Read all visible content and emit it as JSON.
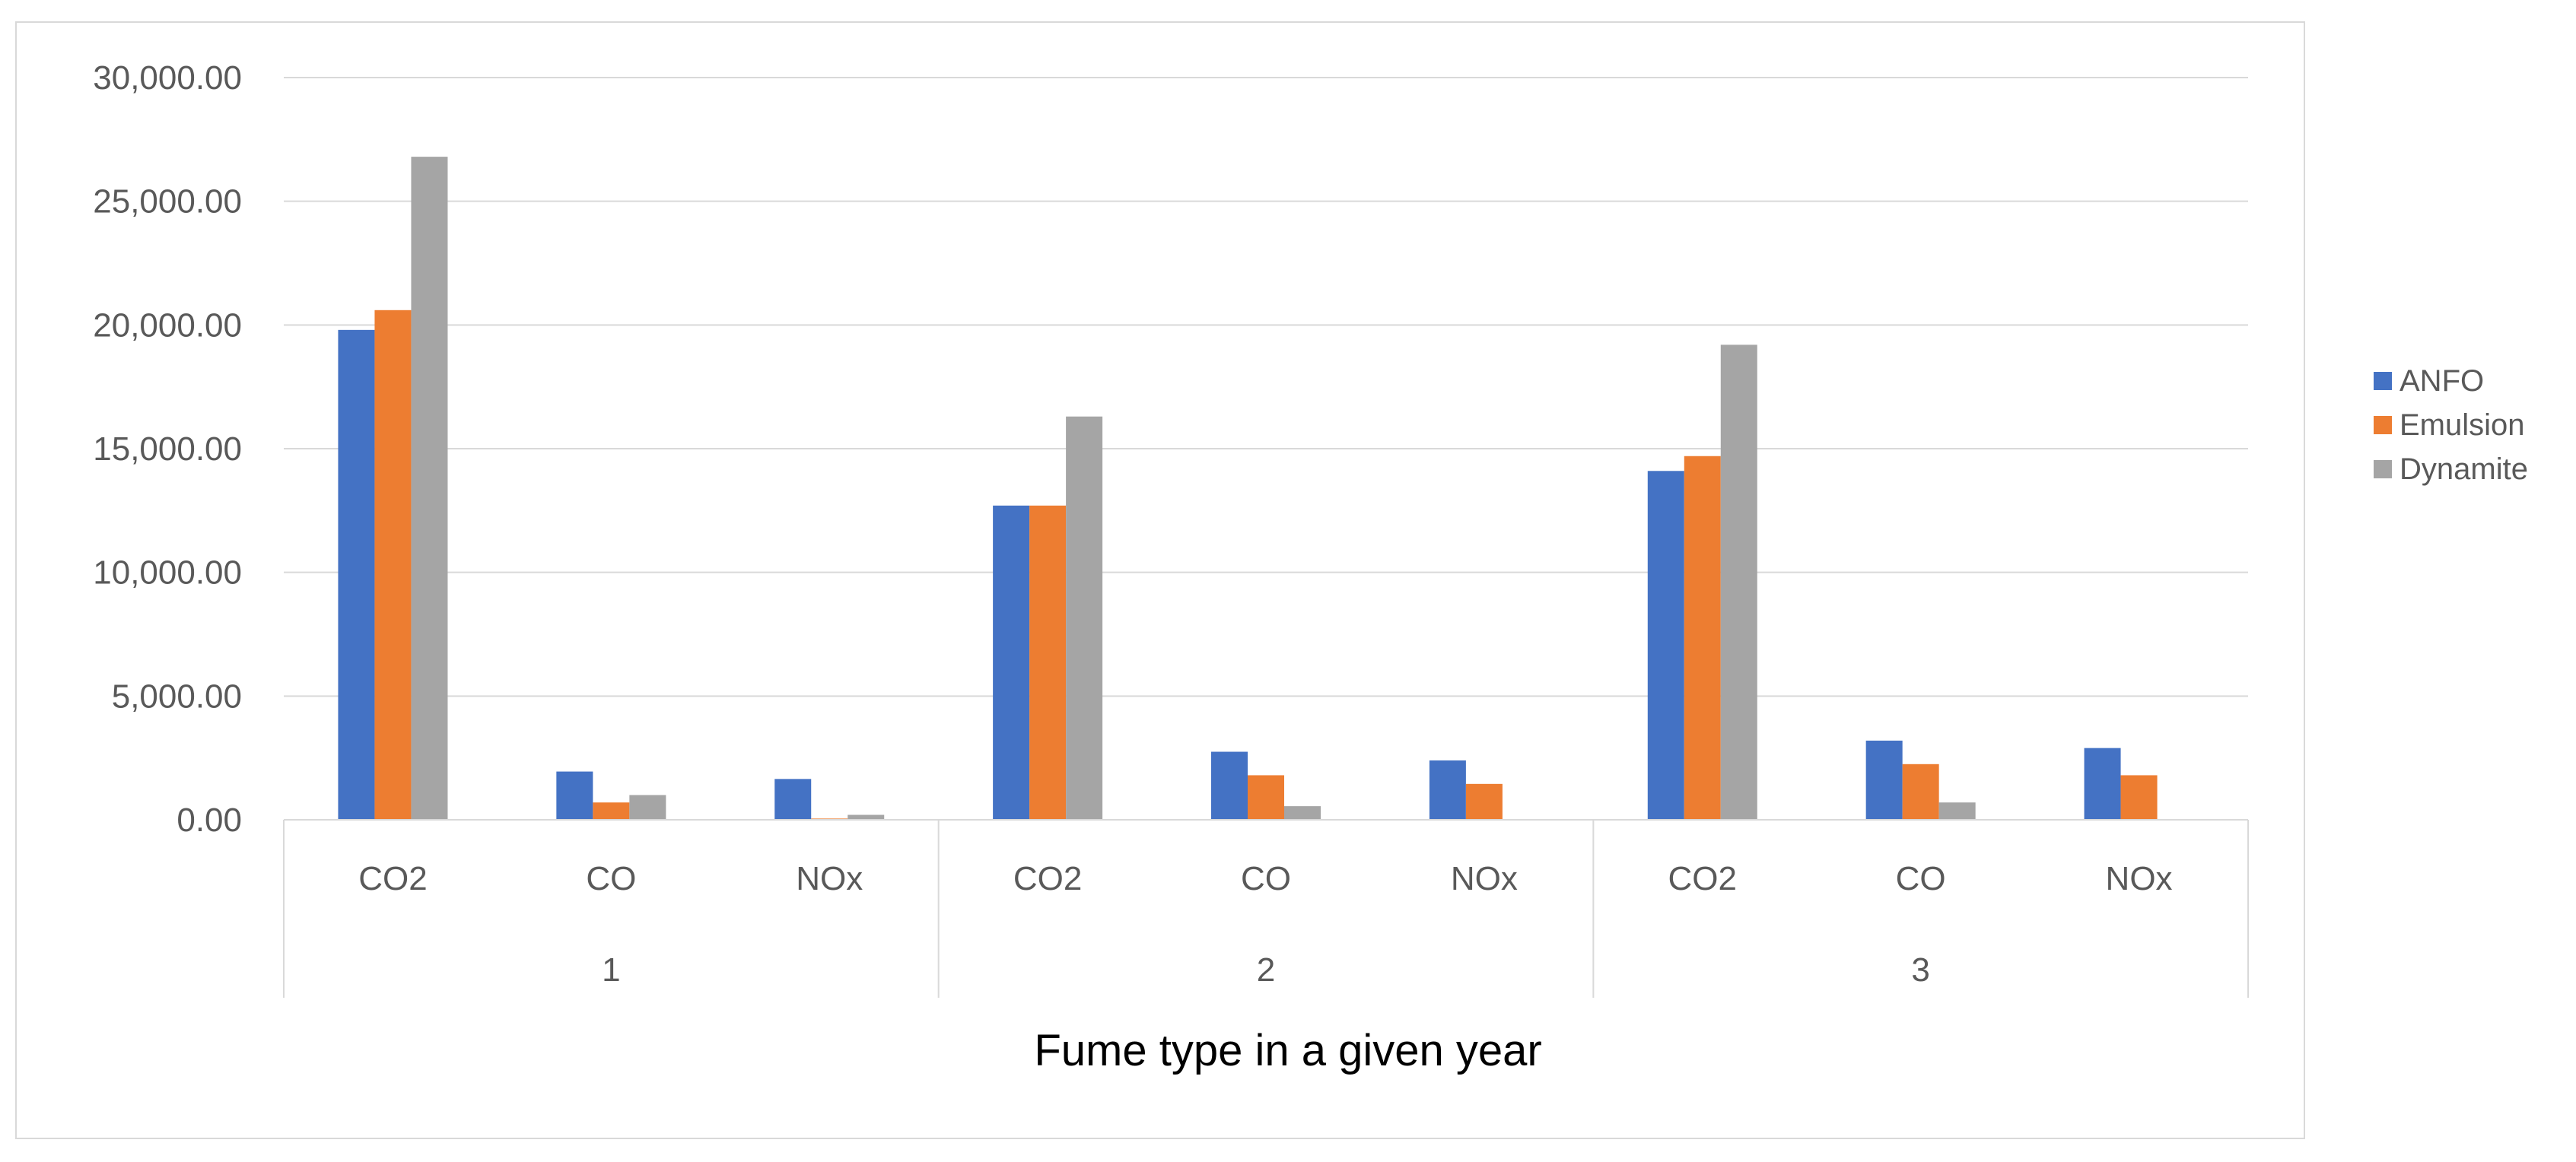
{
  "chart_data": {
    "type": "bar",
    "title": "",
    "xlabel": "Fume type in a given year",
    "ylabel": "",
    "ylim": [
      0,
      30000
    ],
    "y_ticks": [
      "0.00",
      "5,000.00",
      "10,000.00",
      "15,000.00",
      "20,000.00",
      "25,000.00",
      "30,000.00"
    ],
    "y_tick_values": [
      0,
      5000,
      10000,
      15000,
      20000,
      25000,
      30000
    ],
    "groups": [
      {
        "label": "1",
        "categories": [
          "CO2",
          "CO",
          "NOx"
        ]
      },
      {
        "label": "2",
        "categories": [
          "CO2",
          "CO",
          "NOx"
        ]
      },
      {
        "label": "3",
        "categories": [
          "CO2",
          "CO",
          "NOx"
        ]
      }
    ],
    "series": [
      {
        "name": "ANFO",
        "color": "#4472C4",
        "values": [
          19800,
          1950,
          1650,
          12700,
          2750,
          2400,
          14100,
          3200,
          2900
        ]
      },
      {
        "name": "Emulsion",
        "color": "#ED7D31",
        "values": [
          20600,
          700,
          50,
          12700,
          1800,
          1450,
          14700,
          2250,
          1800
        ]
      },
      {
        "name": "Dynamite",
        "color": "#A5A5A5",
        "values": [
          26800,
          1000,
          200,
          16300,
          550,
          0,
          19200,
          700,
          0
        ]
      }
    ],
    "grid": true,
    "legend_position": "right"
  }
}
